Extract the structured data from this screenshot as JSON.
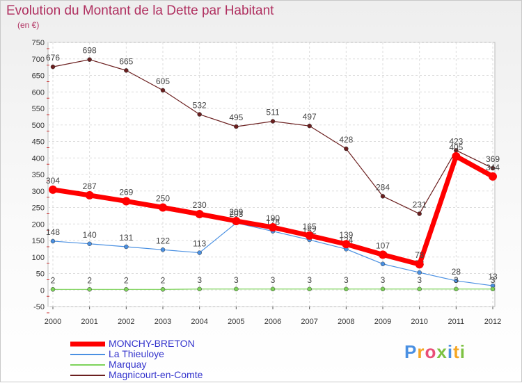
{
  "chart_data": {
    "type": "line",
    "title": "Evolution du Montant de la Dette par Habitant",
    "subtitle": "(en €)",
    "xlabel": "",
    "ylabel": "",
    "ylim": [
      -50,
      750
    ],
    "yticks": [
      -50,
      0,
      50,
      100,
      150,
      200,
      250,
      300,
      350,
      400,
      450,
      500,
      550,
      600,
      650,
      700,
      750
    ],
    "categories": [
      "2000",
      "2001",
      "2002",
      "2003",
      "2004",
      "2005",
      "2006",
      "2007",
      "2008",
      "2009",
      "2010",
      "2011",
      "2012"
    ],
    "grid": true,
    "legend_position": "bottom-left",
    "series": [
      {
        "name": "Magnicourt-en-Comte",
        "color": "#6b1f1f",
        "labelColor": "#444444",
        "values": [
          676,
          698,
          665,
          605,
          532,
          495,
          511,
          497,
          428,
          284,
          231,
          423,
          369
        ]
      },
      {
        "name": "La Thieuloye",
        "color": "#4a90e2",
        "labelColor": "#444444",
        "values": [
          148,
          140,
          131,
          122,
          113,
          203,
          178,
          152,
          124,
          79,
          53,
          28,
          13
        ]
      },
      {
        "name": "Marquay",
        "color": "#7dd35a",
        "labelColor": "#444444",
        "values": [
          2,
          2,
          2,
          2,
          3,
          3,
          3,
          3,
          3,
          3,
          3,
          3,
          3
        ]
      },
      {
        "name": "MONCHY-BRETON",
        "color": "#ff0000",
        "labelColor": "#444444",
        "values": [
          304,
          287,
          269,
          250,
          230,
          209,
          190,
          165,
          139,
          107,
          78,
          405,
          344
        ]
      }
    ],
    "legend_order": [
      "MONCHY-BRETON",
      "La Thieuloye",
      "Marquay",
      "Magnicourt-en-Comte"
    ]
  },
  "logo": {
    "letters": [
      "P",
      "r",
      "o",
      "x",
      "i",
      "t",
      "i"
    ],
    "colors": [
      "#4a90e2",
      "#f5a623",
      "#e94e77",
      "#7dc242",
      "#4a90e2",
      "#f5a623",
      "#7dc242"
    ]
  }
}
